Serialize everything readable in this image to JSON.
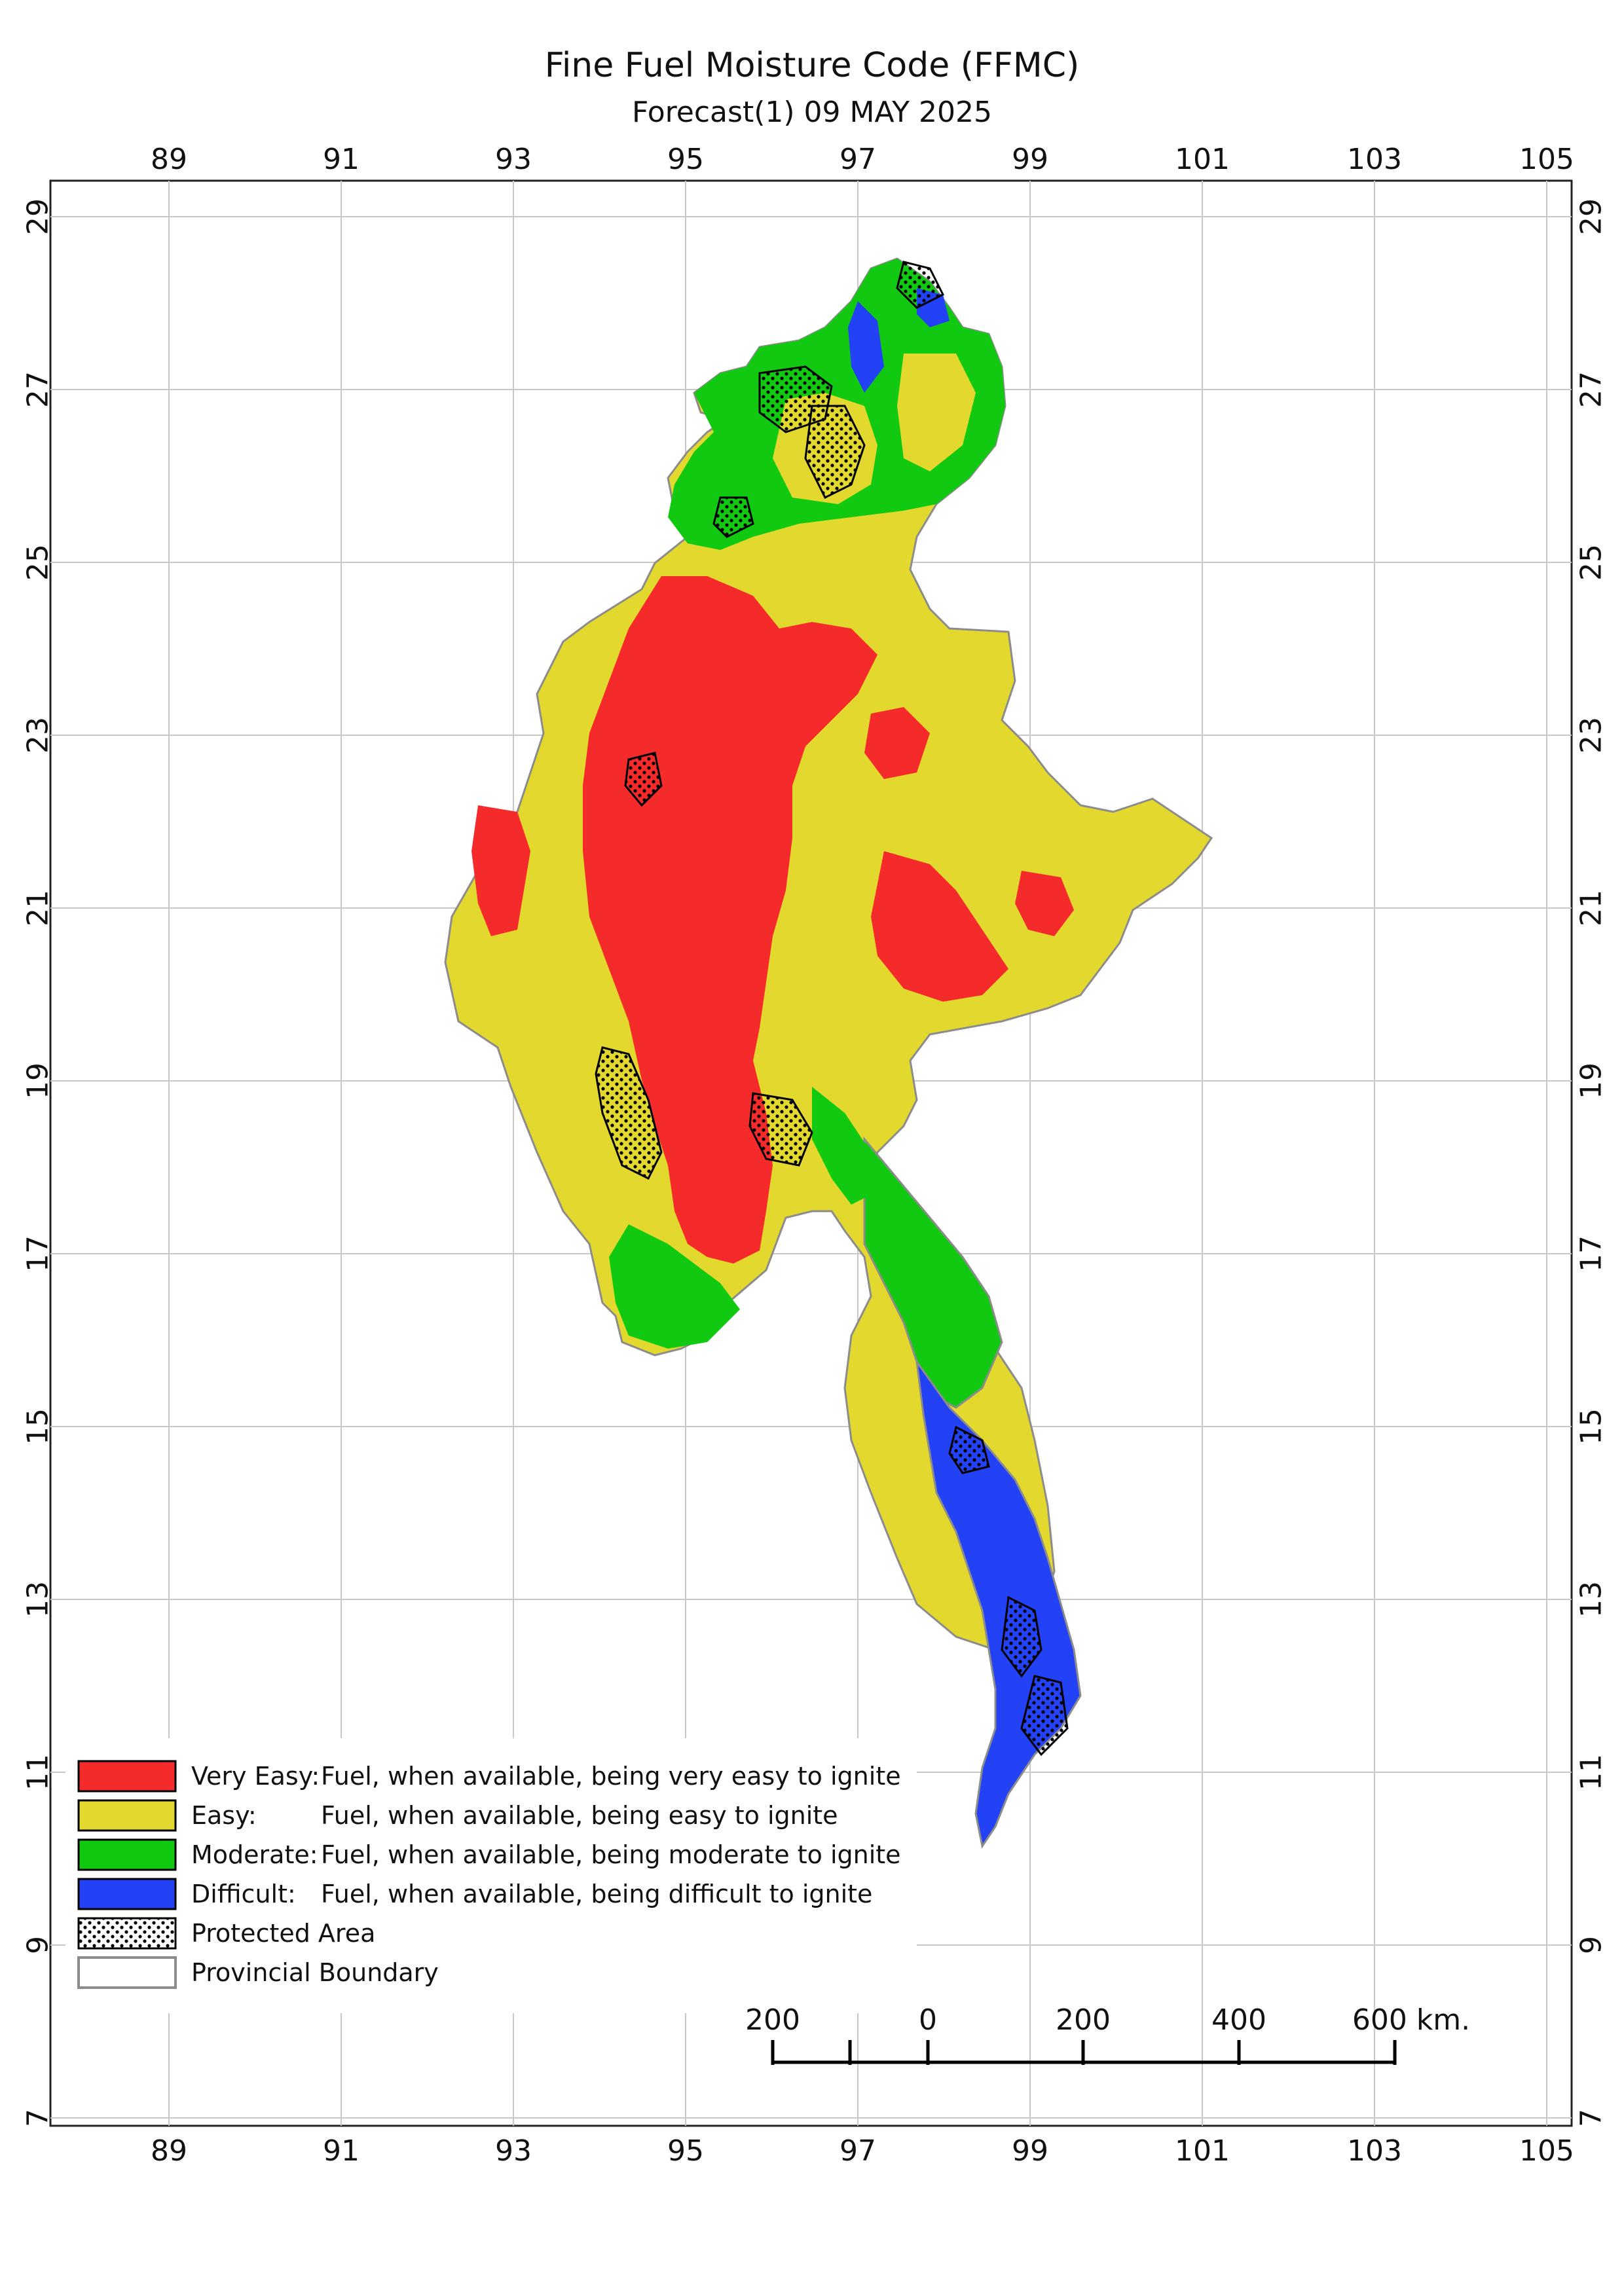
{
  "title": "Fine Fuel Moisture Code (FFMC)",
  "subtitle": "Forecast(1) 09 MAY 2025",
  "axes": {
    "lon_ticks": [
      "89",
      "91",
      "93",
      "95",
      "97",
      "99",
      "101",
      "103",
      "105"
    ],
    "lat_ticks": [
      "29",
      "27",
      "25",
      "23",
      "21",
      "19",
      "17",
      "15",
      "13",
      "11",
      "9",
      "7"
    ]
  },
  "legend": {
    "items": [
      {
        "category": "Very Easy:",
        "description": "Fuel, when available, being very easy to ignite",
        "color": "#f52b2b"
      },
      {
        "category": "Easy:",
        "description": "Fuel, when available, being easy to ignite",
        "color": "#e3d82d"
      },
      {
        "category": "Moderate:",
        "description": "Fuel, when available, being moderate to ignite",
        "color": "#11c911"
      },
      {
        "category": "Difficult:",
        "description": "Fuel, when available, being difficult to ignite",
        "color": "#2442f5"
      },
      {
        "category": "Protected Area",
        "description": "",
        "color": "pattern-dots"
      },
      {
        "category": "Provincial Boundary",
        "description": "",
        "color": "#8c8c8c"
      }
    ]
  },
  "scale_bar": {
    "labels": [
      "200",
      "0",
      "200",
      "400",
      "600 km."
    ]
  }
}
